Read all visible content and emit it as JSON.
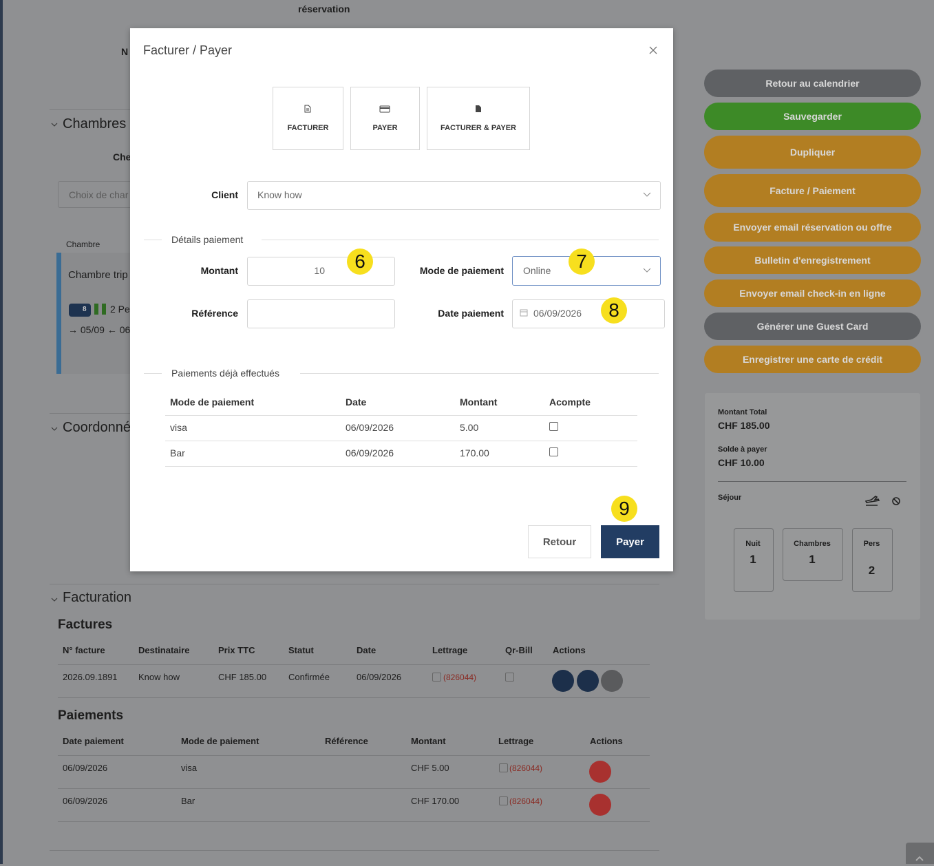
{
  "background": {
    "header": {
      "reservation": "réservation",
      "number_label": "N"
    },
    "rooms": {
      "title": "Chambres",
      "field_label": "Che",
      "placeholder": "Choix de char",
      "column": "Chambre",
      "card": {
        "name": "Chambre trip",
        "badge": "8",
        "guests": "2 Pe",
        "dates": "→ 05/09 ← 06/"
      }
    },
    "contact": {
      "title": "Coordonné"
    },
    "billing": {
      "title": "Facturation",
      "invoices": {
        "title": "Factures",
        "headers": [
          "N° facture",
          "Destinataire",
          "Prix TTC",
          "Statut",
          "Date",
          "Lettrage",
          "Qr-Bill",
          "Actions"
        ],
        "rows": [
          {
            "number": "2026.09.1891",
            "recipient": "Know how",
            "price": "CHF 185.00",
            "status": "Confirmée",
            "date": "06/09/2026",
            "lettrage": "(826044)"
          }
        ]
      },
      "payments": {
        "title": "Paiements",
        "headers": [
          "Date paiement",
          "Mode de paiement",
          "Référence",
          "Montant",
          "Lettrage",
          "Actions"
        ],
        "rows": [
          {
            "date": "06/09/2026",
            "mode": "visa",
            "amount": "CHF 5.00",
            "lettrage": "(826044)"
          },
          {
            "date": "06/09/2026",
            "mode": "Bar",
            "amount": "CHF 170.00",
            "lettrage": "(826044)"
          }
        ]
      }
    }
  },
  "sidebar": {
    "buttons": [
      "Retour au calendrier",
      "Sauvegarder",
      "Dupliquer",
      "Facture / Paiement",
      "Envoyer email réservation ou offre",
      "Bulletin d'enregistrement",
      "Envoyer email check-in en ligne",
      "Générer une Guest Card",
      "Enregistrer une carte de crédit"
    ],
    "summary": {
      "total_label": "Montant Total",
      "total": "CHF 185.00",
      "balance_label": "Solde à payer",
      "balance": "CHF 10.00",
      "stay_label": "Séjour",
      "stats": [
        {
          "label": "Nuit",
          "value": "1"
        },
        {
          "label": "Chambres",
          "value": "1"
        },
        {
          "label": "Pers",
          "value": "2"
        }
      ]
    }
  },
  "modal": {
    "title": "Facturer / Payer",
    "actions": [
      "FACTURER",
      "PAYER",
      "FACTURER & PAYER"
    ],
    "client": {
      "label": "Client",
      "value": "Know how"
    },
    "payment_details": {
      "legend": "Détails paiement",
      "amount_label": "Montant",
      "amount": "10",
      "mode_label": "Mode de paiement",
      "mode": "Online",
      "reference_label": "Référence",
      "date_label": "Date paiement",
      "date": "06/09/2026"
    },
    "previous": {
      "legend": "Paiements déjà effectués",
      "headers": [
        "Mode de paiement",
        "Date",
        "Montant",
        "Acompte"
      ],
      "rows": [
        {
          "mode": "visa",
          "date": "06/09/2026",
          "amount": "5.00"
        },
        {
          "mode": "Bar",
          "date": "06/09/2026",
          "amount": "170.00"
        }
      ]
    },
    "buttons": {
      "back": "Retour",
      "pay": "Payer"
    },
    "annotations": [
      "6",
      "7",
      "8",
      "9"
    ]
  }
}
